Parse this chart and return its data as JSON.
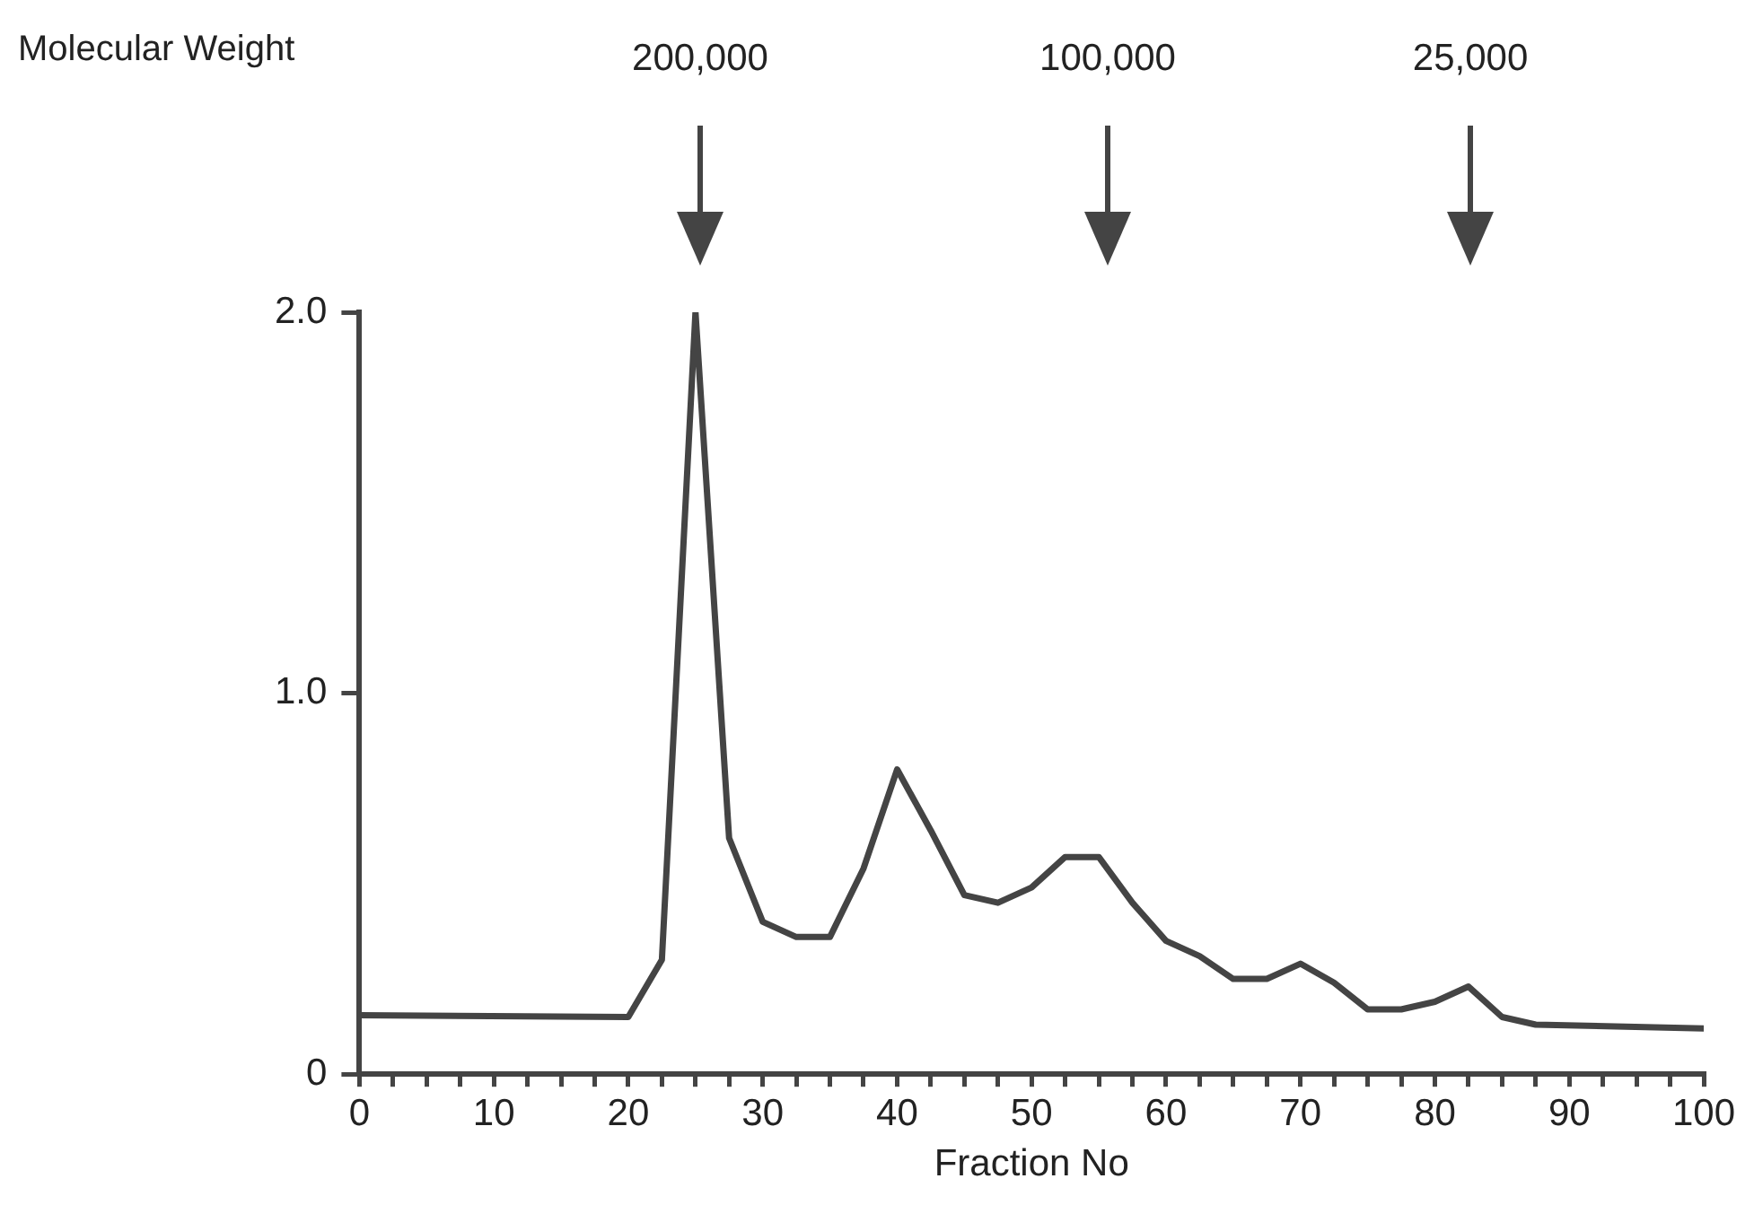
{
  "chart_data": {
    "type": "line",
    "xlabel": "Fraction No",
    "annotations": [
      "Molecular Weight",
      "200,000",
      "100,000",
      "25,000"
    ],
    "series": [
      {
        "color": "#444444",
        "x": [
          0,
          20,
          22.5,
          25,
          27.5,
          30,
          32.5,
          35,
          37.5,
          40,
          42.5,
          45,
          47.5,
          50,
          52.5,
          55,
          57.5,
          60,
          62.5,
          65,
          67.5,
          70,
          72.5,
          75,
          77.5,
          80,
          82.5,
          85,
          87.5,
          100
        ],
        "values": [
          0.155,
          0.15,
          0.3,
          2.0,
          0.62,
          0.4,
          0.36,
          0.36,
          0.54,
          0.8,
          0.64,
          0.47,
          0.45,
          0.49,
          0.57,
          0.57,
          0.45,
          0.35,
          0.31,
          0.25,
          0.25,
          0.29,
          0.24,
          0.17,
          0.17,
          0.19,
          0.23,
          0.15,
          0.13,
          0.12
        ]
      }
    ],
    "xlim": [
      0,
      100
    ],
    "xticks": [
      0,
      {
        "value": 2.5,
        "label": null
      },
      {
        "value": 5,
        "label": null
      },
      {
        "value": 7.5,
        "label": null
      },
      10,
      {
        "value": 12.5,
        "label": null
      },
      {
        "value": 15,
        "label": null
      },
      {
        "value": 17.5,
        "label": null
      },
      20,
      {
        "value": 22.5,
        "label": null
      },
      {
        "value": 25,
        "label": null
      },
      {
        "value": 27.5,
        "label": null
      },
      30,
      {
        "value": 32.5,
        "label": null
      },
      {
        "value": 35,
        "label": null
      },
      {
        "value": 37.5,
        "label": null
      },
      40,
      {
        "value": 42.5,
        "label": null
      },
      {
        "value": 45,
        "label": null
      },
      {
        "value": 47.5,
        "label": null
      },
      50,
      {
        "value": 52.5,
        "label": null
      },
      {
        "value": 55,
        "label": null
      },
      {
        "value": 57.5,
        "label": null
      },
      60,
      {
        "value": 62.5,
        "label": null
      },
      {
        "value": 65,
        "label": null
      },
      {
        "value": 67.5,
        "label": null
      },
      70,
      {
        "value": 72.5,
        "label": null
      },
      {
        "value": 75,
        "label": null
      },
      {
        "value": 77.5,
        "label": null
      },
      80,
      {
        "value": 82.5,
        "label": null
      },
      {
        "value": 85,
        "label": null
      },
      {
        "value": 87.5,
        "label": null
      },
      90,
      {
        "value": 92.5,
        "label": null
      },
      {
        "value": 95,
        "label": null
      },
      {
        "value": 97.5,
        "label": null
      },
      100
    ],
    "ylim": [
      0,
      2
    ],
    "yticks": [
      0,
      {
        "value": 1,
        "label": "1.0"
      },
      {
        "value": 2,
        "label": "2.0"
      }
    ],
    "grid": false,
    "legend": false,
    "marker": "none",
    "line_style": "solid"
  }
}
